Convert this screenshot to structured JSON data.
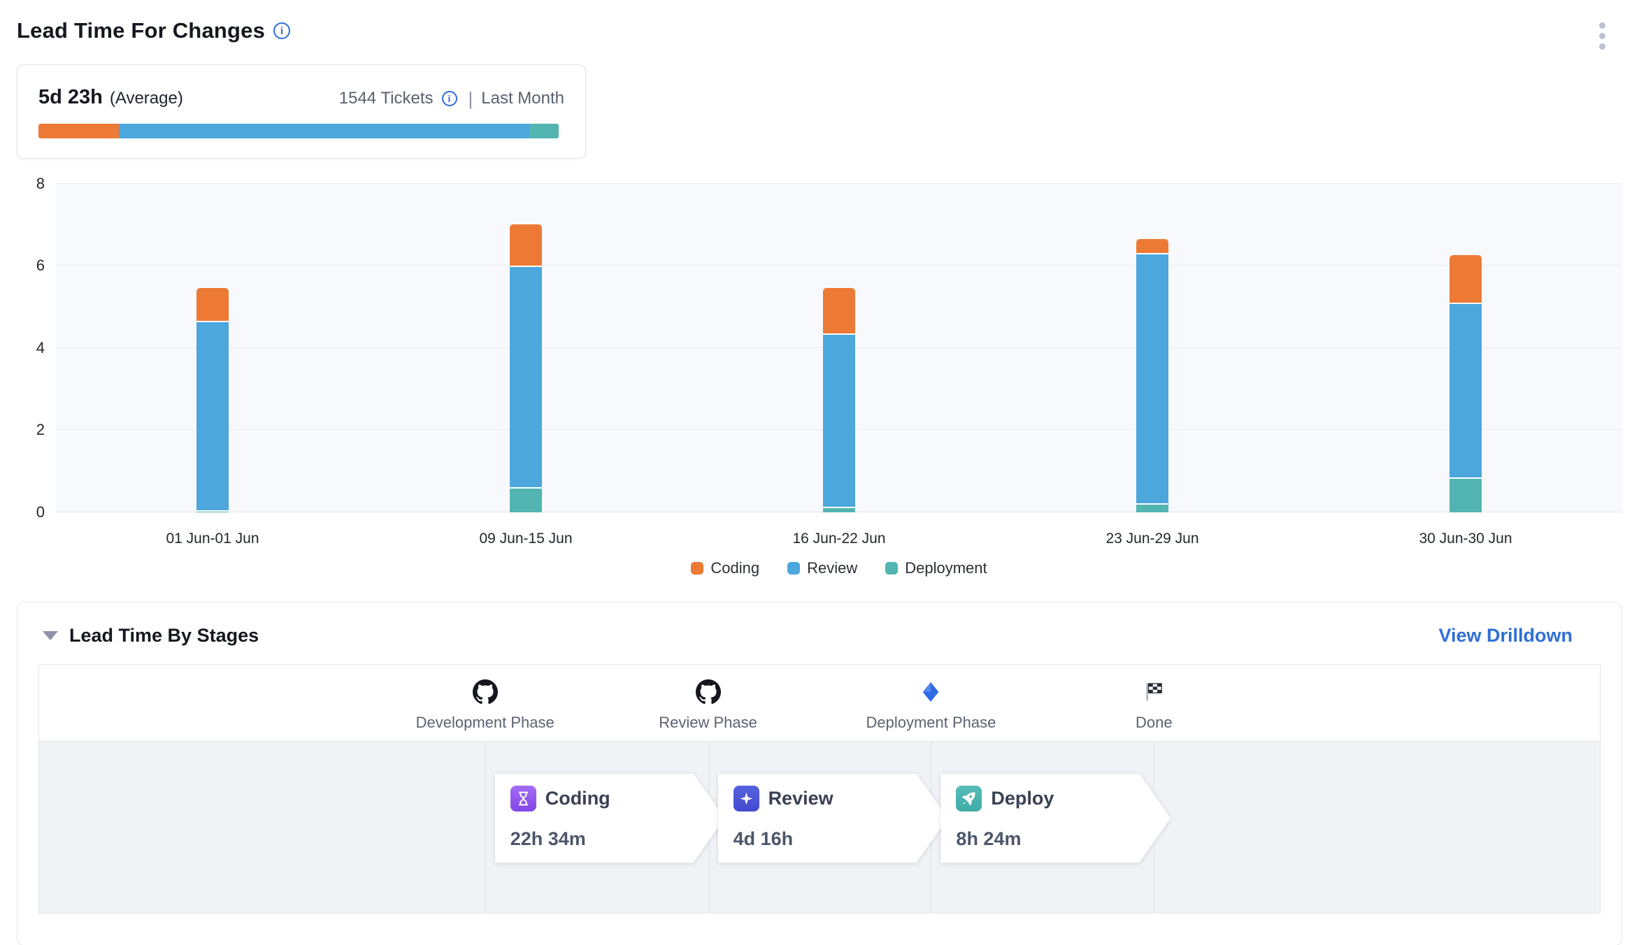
{
  "header": {
    "title": "Lead Time For Changes",
    "info_icon": "info-icon",
    "menu_icon": "kebab-menu-icon"
  },
  "summary": {
    "value": "5d 23h",
    "value_suffix": "(Average)",
    "tickets": "1544 Tickets",
    "tickets_info_icon": "info-icon",
    "divider": "|",
    "period": "Last Month",
    "bar_segments": [
      {
        "name": "Coding",
        "color": "#ec7a35",
        "percent": 15.5
      },
      {
        "name": "Review",
        "color": "#4ba7dc",
        "percent": 78.9
      },
      {
        "name": "Deployment",
        "color": "#52b5b1",
        "percent": 5.6
      }
    ]
  },
  "chart_data": {
    "type": "bar",
    "stacked": true,
    "title": "",
    "xlabel": "",
    "ylabel": "",
    "categories": [
      "01 Jun-01 Jun",
      "09 Jun-15 Jun",
      "16 Jun-22 Jun",
      "23 Jun-29 Jun",
      "30 Jun-30 Jun"
    ],
    "series": [
      {
        "name": "Coding",
        "color": "#ec7a35",
        "values": [
          0.8,
          1.0,
          1.1,
          0.35,
          1.15
        ]
      },
      {
        "name": "Review",
        "color": "#4ba7dc",
        "values": [
          4.6,
          5.4,
          4.23,
          6.08,
          4.25
        ]
      },
      {
        "name": "Deployment",
        "color": "#52b5b1",
        "values": [
          0.05,
          0.6,
          0.12,
          0.22,
          0.85
        ]
      }
    ],
    "stack_order_bottom_to_top": [
      "Deployment",
      "Review",
      "Coding"
    ],
    "totals": [
      5.45,
      7.0,
      5.45,
      6.65,
      6.25
    ],
    "ylim": [
      0,
      8
    ],
    "yticks": [
      0,
      2,
      4,
      6,
      8
    ],
    "grid": true,
    "legend_position": "bottom"
  },
  "stages": {
    "collapse_icon": "chevron-down-icon",
    "title": "Lead Time By Stages",
    "drilldown_label": "View Drilldown",
    "phases": [
      {
        "label": "Development Phase",
        "icon": "github-icon"
      },
      {
        "label": "Review Phase",
        "icon": "github-icon"
      },
      {
        "label": "Deployment Phase",
        "icon": "diamond-icon"
      },
      {
        "label": "Done",
        "icon": "finish-flag-icon"
      }
    ],
    "cards": [
      {
        "title": "Coding",
        "duration": "22h 34m",
        "icon": "hourglass-icon",
        "icon_color_top": "#a36bf5",
        "icon_color_bottom": "#8347e6"
      },
      {
        "title": "Review",
        "duration": "4d 16h",
        "icon": "sparkle-icon",
        "icon_color_top": "#5563dd",
        "icon_color_bottom": "#4349cf"
      },
      {
        "title": "Deploy",
        "duration": "8h 24m",
        "icon": "rocket-icon",
        "icon_color_top": "#56bdb8",
        "icon_color_bottom": "#41aba6"
      }
    ]
  }
}
